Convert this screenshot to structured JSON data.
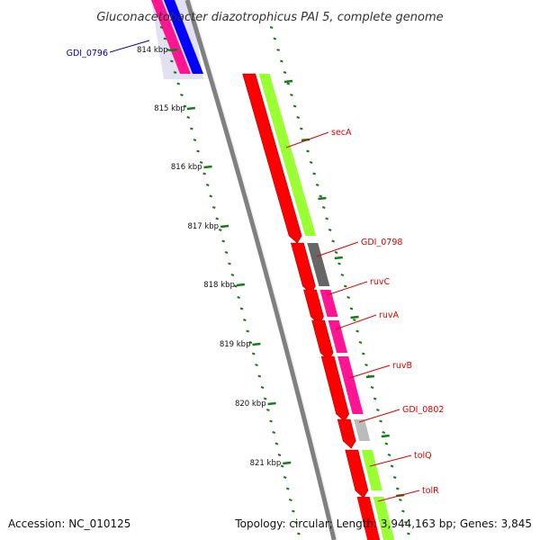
{
  "title": "Gluconacetobacter diazotrophicus PAI 5, complete genome",
  "footer": {
    "accession": "Accession: NC_010125",
    "summary": "Topology: circular; Length: 3,944,163 bp; Genes: 3,845"
  },
  "colors": {
    "backbone": "#808080",
    "tick": "#1a7a1a",
    "cds": "#ff0000",
    "gene_label": "#dd0000",
    "reverse_gene_label": "#0000aa",
    "shade": "#dcdcf0"
  },
  "scale": {
    "unit": "kbp",
    "labels": [
      "814 kbp",
      "815 kbp",
      "816 kbp",
      "817 kbp",
      "818 kbp",
      "819 kbp",
      "820 kbp",
      "821 kbp"
    ]
  },
  "genes": [
    {
      "name": "GDI_0796",
      "strand": "reverse",
      "color": "#ff1493"
    },
    {
      "name": "secA",
      "strand": "forward",
      "color": "#99ff33"
    },
    {
      "name": "GDI_0798",
      "strand": "forward",
      "color": "#666666"
    },
    {
      "name": "ruvC",
      "strand": "forward",
      "color": "#ff1493"
    },
    {
      "name": "ruvA",
      "strand": "forward",
      "color": "#ff1493"
    },
    {
      "name": "ruvB",
      "strand": "forward",
      "color": "#ff1493"
    },
    {
      "name": "GDI_0802",
      "strand": "forward",
      "color": "#bbbbbb"
    },
    {
      "name": "tolQ",
      "strand": "forward",
      "color": "#99ff33"
    },
    {
      "name": "tolR",
      "strand": "forward",
      "color": "#99ff33"
    }
  ],
  "extra_tracks": {
    "reverse_blue": "#0000ff",
    "reverse_pink": "#ff1493"
  }
}
